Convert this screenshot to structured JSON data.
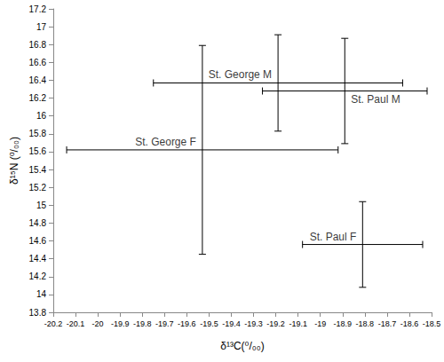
{
  "chart_data": {
    "type": "scatter",
    "x_label": "δ¹³C(⁰/₀₀)",
    "y_label": "δ¹⁵N (⁰/₀₀)",
    "xlim": [
      -20.2,
      -18.5
    ],
    "xticks": [
      -20.2,
      -20.1,
      -20,
      -19.9,
      -19.8,
      -19.7,
      -19.6,
      -19.5,
      -19.4,
      -19.3,
      -19.2,
      -19.1,
      -19,
      -18.9,
      -18.8,
      -18.7,
      -18.6,
      -18.5
    ],
    "ylim": [
      13.8,
      17.2
    ],
    "yticks": [
      13.8,
      14,
      14.2,
      14.4,
      14.6,
      14.8,
      15,
      15.2,
      15.4,
      15.6,
      15.8,
      16,
      16.2,
      16.4,
      16.6,
      16.8,
      17,
      17.2
    ],
    "grid": false,
    "color": "#000000",
    "series": [
      {
        "name": "St. George M",
        "x": [
          -19.19
        ],
        "y": [
          16.37
        ],
        "x_error": [
          0.56
        ],
        "y_error": [
          0.54
        ]
      },
      {
        "name": "St. Paul M",
        "x": [
          -18.89
        ],
        "y": [
          16.28
        ],
        "x_error": [
          0.37
        ],
        "y_error": [
          0.59
        ]
      },
      {
        "name": "St. George F",
        "x": [
          -19.53
        ],
        "y": [
          15.62
        ],
        "x_error": [
          0.61
        ],
        "y_error": [
          1.17
        ]
      },
      {
        "name": "St. Paul F",
        "x": [
          -18.81
        ],
        "y": [
          14.56
        ],
        "x_error": [
          0.27
        ],
        "y_error": [
          0.48
        ]
      }
    ]
  }
}
